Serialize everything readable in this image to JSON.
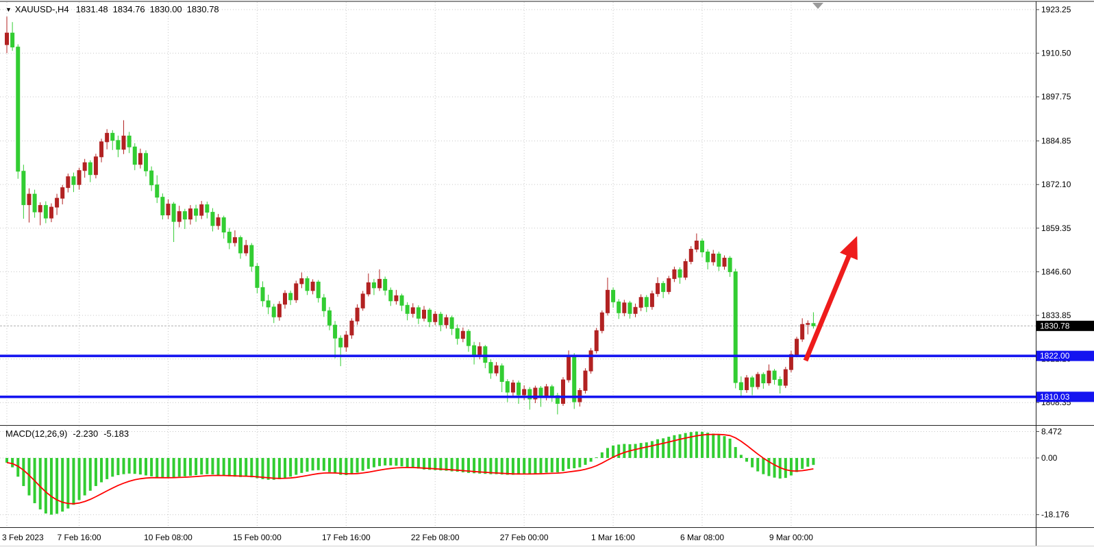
{
  "header": {
    "dropdown_icon": "▼",
    "symbol_period": "XAUUSD-,H4",
    "open": "1831.48",
    "high": "1834.76",
    "low": "1830.00",
    "close": "1830.78"
  },
  "chart_data": {
    "type": "candlestick",
    "symbol": "XAUUSD-",
    "timeframe": "H4",
    "title": "XAUUSD-,H4  1831.48 1834.76 1830.00 1830.78",
    "up_color": "#b22222",
    "down_color": "#32cd32",
    "current_price": 1830.78,
    "current_ohlc": {
      "open": 1831.48,
      "high": 1834.76,
      "low": 1830.0,
      "close": 1830.78
    },
    "y_axis": {
      "labels": [
        "1923.25",
        "1910.50",
        "1897.75",
        "1884.85",
        "1872.10",
        "1859.35",
        "1846.60",
        "1833.85",
        "1821.10",
        "1808.35"
      ],
      "step": 12.75
    },
    "x_axis": {
      "labels": [
        {
          "i": 0,
          "text": "3 Feb 2023"
        },
        {
          "i": 13,
          "text": "7 Feb 16:00"
        },
        {
          "i": 29,
          "text": "10 Feb 08:00"
        },
        {
          "i": 45,
          "text": "15 Feb 00:00"
        },
        {
          "i": 61,
          "text": "17 Feb 16:00"
        },
        {
          "i": 77,
          "text": "22 Feb 08:00"
        },
        {
          "i": 93,
          "text": "27 Feb 00:00"
        },
        {
          "i": 109,
          "text": "1 Mar 16:00"
        },
        {
          "i": 125,
          "text": "6 Mar 08:00"
        },
        {
          "i": 141,
          "text": "9 Mar 00:00"
        }
      ]
    },
    "price_badges": [
      {
        "text": "1830.78",
        "price": 1830.78,
        "bg": "#000000",
        "fg": "#ffffff"
      },
      {
        "text": "1822.00",
        "price": 1822.0,
        "bg": "#1414f0",
        "fg": "#ffffff"
      },
      {
        "text": "1810.03",
        "price": 1810.03,
        "bg": "#1414f0",
        "fg": "#ffffff"
      }
    ],
    "horizontal_lines": [
      {
        "price": 1822.0,
        "color": "#1414f0"
      },
      {
        "price": 1810.03,
        "color": "#1414f0"
      }
    ],
    "arrow": {
      "color": "#ee1c1c",
      "meaning": "bullish-projection"
    },
    "candles": [
      [
        1913.0,
        1921.2,
        1910.5,
        1916.4
      ],
      [
        1916.4,
        1919.6,
        1911.2,
        1912.3
      ],
      [
        1912.3,
        1913.1,
        1873.8,
        1876.0
      ],
      [
        1876.0,
        1877.9,
        1862.1,
        1866.2
      ],
      [
        1866.2,
        1871.0,
        1861.0,
        1869.3
      ],
      [
        1869.3,
        1870.6,
        1862.4,
        1864.1
      ],
      [
        1864.1,
        1866.9,
        1860.2,
        1866.0
      ],
      [
        1866.0,
        1867.2,
        1860.8,
        1862.3
      ],
      [
        1862.3,
        1866.6,
        1861.1,
        1865.5
      ],
      [
        1865.5,
        1869.4,
        1863.2,
        1868.1
      ],
      [
        1868.1,
        1872.0,
        1866.3,
        1871.2
      ],
      [
        1871.2,
        1875.3,
        1869.8,
        1874.4
      ],
      [
        1874.4,
        1875.6,
        1869.9,
        1872.1
      ],
      [
        1872.1,
        1877.0,
        1870.6,
        1876.2
      ],
      [
        1876.2,
        1879.6,
        1874.1,
        1878.5
      ],
      [
        1878.5,
        1879.2,
        1872.8,
        1875.0
      ],
      [
        1875.0,
        1881.1,
        1873.9,
        1880.2
      ],
      [
        1880.2,
        1885.5,
        1878.6,
        1884.6
      ],
      [
        1884.6,
        1888.3,
        1882.4,
        1887.1
      ],
      [
        1887.1,
        1888.0,
        1882.2,
        1885.0
      ],
      [
        1885.0,
        1886.4,
        1880.1,
        1882.4
      ],
      [
        1882.4,
        1890.9,
        1881.0,
        1886.3
      ],
      [
        1886.3,
        1887.5,
        1881.3,
        1883.1
      ],
      [
        1883.1,
        1884.2,
        1876.3,
        1878.0
      ],
      [
        1878.0,
        1882.6,
        1876.8,
        1881.2
      ],
      [
        1881.2,
        1882.1,
        1874.5,
        1876.1
      ],
      [
        1876.1,
        1877.4,
        1870.2,
        1872.0
      ],
      [
        1872.0,
        1874.8,
        1866.7,
        1868.4
      ],
      [
        1868.4,
        1869.5,
        1861.9,
        1863.2
      ],
      [
        1863.2,
        1867.8,
        1862.0,
        1866.4
      ],
      [
        1866.4,
        1867.0,
        1855.3,
        1861.3
      ],
      [
        1861.3,
        1865.9,
        1859.6,
        1864.2
      ],
      [
        1864.2,
        1865.0,
        1859.1,
        1862.0
      ],
      [
        1862.0,
        1866.1,
        1860.4,
        1865.0
      ],
      [
        1865.0,
        1866.2,
        1861.2,
        1863.1
      ],
      [
        1863.1,
        1867.3,
        1862.0,
        1866.2
      ],
      [
        1866.2,
        1867.1,
        1862.2,
        1864.0
      ],
      [
        1864.0,
        1865.2,
        1858.4,
        1860.1
      ],
      [
        1860.1,
        1863.5,
        1858.9,
        1862.4
      ],
      [
        1862.4,
        1863.0,
        1856.3,
        1858.2
      ],
      [
        1858.2,
        1859.4,
        1853.2,
        1855.1
      ],
      [
        1855.1,
        1858.7,
        1854.0,
        1856.6
      ],
      [
        1856.6,
        1857.2,
        1850.4,
        1852.1
      ],
      [
        1852.1,
        1855.9,
        1851.2,
        1854.3
      ],
      [
        1854.3,
        1855.0,
        1846.6,
        1848.2
      ],
      [
        1848.2,
        1849.1,
        1840.3,
        1842.0
      ],
      [
        1842.0,
        1843.8,
        1836.4,
        1838.1
      ],
      [
        1838.1,
        1839.9,
        1834.2,
        1836.3
      ],
      [
        1836.3,
        1837.2,
        1831.6,
        1833.4
      ],
      [
        1833.4,
        1838.0,
        1832.3,
        1837.1
      ],
      [
        1837.1,
        1841.2,
        1835.8,
        1840.3
      ],
      [
        1840.3,
        1841.1,
        1836.9,
        1838.4
      ],
      [
        1838.4,
        1844.0,
        1837.5,
        1843.1
      ],
      [
        1843.1,
        1846.4,
        1841.8,
        1844.6
      ],
      [
        1844.6,
        1845.3,
        1839.8,
        1841.1
      ],
      [
        1841.1,
        1844.4,
        1840.0,
        1843.6
      ],
      [
        1843.6,
        1844.2,
        1837.6,
        1839.0
      ],
      [
        1839.0,
        1840.1,
        1833.4,
        1835.2
      ],
      [
        1835.2,
        1836.3,
        1829.5,
        1831.0
      ],
      [
        1831.0,
        1832.2,
        1821.3,
        1827.2
      ],
      [
        1827.2,
        1828.0,
        1819.0,
        1824.6
      ],
      [
        1824.6,
        1829.3,
        1823.2,
        1828.1
      ],
      [
        1828.1,
        1833.0,
        1827.0,
        1832.2
      ],
      [
        1832.2,
        1837.1,
        1831.1,
        1836.0
      ],
      [
        1836.0,
        1841.0,
        1835.2,
        1840.1
      ],
      [
        1840.1,
        1846.1,
        1839.4,
        1843.4
      ],
      [
        1843.4,
        1844.5,
        1839.8,
        1841.9
      ],
      [
        1841.9,
        1847.3,
        1841.0,
        1844.4
      ],
      [
        1844.4,
        1845.2,
        1839.7,
        1841.2
      ],
      [
        1841.2,
        1842.0,
        1836.6,
        1838.1
      ],
      [
        1838.1,
        1841.3,
        1837.0,
        1839.6
      ],
      [
        1839.6,
        1840.2,
        1835.1,
        1836.8
      ],
      [
        1836.8,
        1837.7,
        1832.4,
        1834.4
      ],
      [
        1834.4,
        1837.4,
        1833.2,
        1836.1
      ],
      [
        1836.1,
        1836.8,
        1831.3,
        1833.0
      ],
      [
        1833.0,
        1836.6,
        1832.1,
        1835.4
      ],
      [
        1835.4,
        1836.0,
        1830.4,
        1832.0
      ],
      [
        1832.0,
        1835.1,
        1831.0,
        1834.2
      ],
      [
        1834.2,
        1834.9,
        1829.2,
        1831.1
      ],
      [
        1831.1,
        1834.1,
        1830.0,
        1833.2
      ],
      [
        1833.2,
        1833.8,
        1828.1,
        1830.0
      ],
      [
        1830.0,
        1831.2,
        1825.3,
        1827.1
      ],
      [
        1827.1,
        1830.3,
        1826.0,
        1829.2
      ],
      [
        1829.2,
        1829.8,
        1823.2,
        1825.0
      ],
      [
        1825.0,
        1826.1,
        1819.5,
        1822.1
      ],
      [
        1822.1,
        1826.0,
        1821.0,
        1824.7
      ],
      [
        1824.7,
        1825.2,
        1818.4,
        1820.1
      ],
      [
        1820.1,
        1821.0,
        1815.3,
        1817.0
      ],
      [
        1817.0,
        1820.2,
        1816.1,
        1819.1
      ],
      [
        1819.1,
        1819.8,
        1811.4,
        1814.5
      ],
      [
        1814.5,
        1815.2,
        1808.5,
        1811.4
      ],
      [
        1811.4,
        1815.0,
        1810.3,
        1814.1
      ],
      [
        1814.1,
        1814.8,
        1808.0,
        1810.6
      ],
      [
        1810.6,
        1813.4,
        1809.1,
        1812.2
      ],
      [
        1812.2,
        1812.9,
        1806.3,
        1809.4
      ],
      [
        1809.4,
        1813.3,
        1808.2,
        1812.6
      ],
      [
        1812.6,
        1813.2,
        1807.1,
        1810.0
      ],
      [
        1810.0,
        1813.8,
        1809.0,
        1813.0
      ],
      [
        1813.0,
        1813.6,
        1808.6,
        1810.4
      ],
      [
        1810.4,
        1811.2,
        1804.9,
        1808.1
      ],
      [
        1808.1,
        1815.8,
        1807.4,
        1815.0
      ],
      [
        1815.0,
        1823.6,
        1814.2,
        1822.0
      ],
      [
        1822.0,
        1822.8,
        1806.5,
        1808.6
      ],
      [
        1808.6,
        1812.6,
        1807.2,
        1811.9
      ],
      [
        1811.9,
        1818.4,
        1811.0,
        1817.6
      ],
      [
        1817.6,
        1824.3,
        1816.8,
        1823.5
      ],
      [
        1823.5,
        1830.2,
        1822.7,
        1829.4
      ],
      [
        1829.4,
        1835.3,
        1828.6,
        1834.6
      ],
      [
        1834.6,
        1844.9,
        1833.8,
        1841.2
      ],
      [
        1841.2,
        1842.0,
        1836.1,
        1837.8
      ],
      [
        1837.8,
        1838.6,
        1832.8,
        1834.6
      ],
      [
        1834.6,
        1838.4,
        1833.6,
        1837.5
      ],
      [
        1837.5,
        1838.1,
        1832.9,
        1834.4
      ],
      [
        1834.4,
        1837.3,
        1833.3,
        1836.2
      ],
      [
        1836.2,
        1840.0,
        1835.1,
        1839.1
      ],
      [
        1839.1,
        1839.8,
        1834.8,
        1836.4
      ],
      [
        1836.4,
        1841.1,
        1835.5,
        1840.2
      ],
      [
        1840.2,
        1845.0,
        1839.3,
        1843.2
      ],
      [
        1843.2,
        1843.9,
        1838.9,
        1840.8
      ],
      [
        1840.8,
        1845.4,
        1840.0,
        1844.6
      ],
      [
        1844.6,
        1848.1,
        1843.6,
        1847.2
      ],
      [
        1847.2,
        1847.9,
        1843.1,
        1845.0
      ],
      [
        1845.0,
        1850.4,
        1844.2,
        1849.6
      ],
      [
        1849.6,
        1854.1,
        1848.8,
        1853.2
      ],
      [
        1853.2,
        1857.8,
        1852.3,
        1855.6
      ],
      [
        1855.6,
        1856.3,
        1850.9,
        1852.4
      ],
      [
        1852.4,
        1853.2,
        1847.3,
        1849.5
      ],
      [
        1849.5,
        1853.0,
        1848.4,
        1851.8
      ],
      [
        1851.8,
        1852.5,
        1846.8,
        1848.2
      ],
      [
        1848.2,
        1851.4,
        1847.2,
        1850.6
      ],
      [
        1850.6,
        1851.2,
        1845.1,
        1846.6
      ],
      [
        1846.6,
        1847.5,
        1812.5,
        1814.2
      ],
      [
        1814.2,
        1816.0,
        1809.8,
        1812.1
      ],
      [
        1812.1,
        1816.4,
        1811.2,
        1815.6
      ],
      [
        1815.6,
        1816.2,
        1810.5,
        1813.0
      ],
      [
        1813.0,
        1817.3,
        1812.2,
        1816.6
      ],
      [
        1816.6,
        1817.2,
        1812.4,
        1814.1
      ],
      [
        1814.1,
        1819.5,
        1813.3,
        1817.6
      ],
      [
        1817.6,
        1818.2,
        1813.6,
        1815.1
      ],
      [
        1815.1,
        1816.0,
        1811.0,
        1813.4
      ],
      [
        1813.4,
        1818.8,
        1812.6,
        1818.0
      ],
      [
        1818.0,
        1823.5,
        1817.2,
        1822.4
      ],
      [
        1822.4,
        1827.6,
        1821.6,
        1826.9
      ],
      [
        1826.9,
        1833.0,
        1826.1,
        1831.2
      ],
      [
        1831.2,
        1832.4,
        1828.3,
        1831.5
      ],
      [
        1831.48,
        1834.76,
        1830.0,
        1830.78
      ]
    ],
    "macd": {
      "label": "MACD(12,26,9)",
      "main_value": "-2.230",
      "signal_value": "-5.183",
      "axis_labels": [
        "8.472",
        "0.00",
        "-18.176"
      ],
      "histogram_color": "#32cd32",
      "signal_color": "#ff0000",
      "histogram": [
        -1.5,
        -3,
        -6,
        -9,
        -12,
        -14.5,
        -16.5,
        -17.8,
        -18.18,
        -17.9,
        -17.2,
        -16.2,
        -15,
        -13.5,
        -12,
        -10.5,
        -9,
        -7.8,
        -6.8,
        -6,
        -5.5,
        -5.2,
        -5.0,
        -5.1,
        -5.3,
        -5.6,
        -5.9,
        -6.2,
        -6.4,
        -6.3,
        -6.2,
        -6.0,
        -5.9,
        -5.7,
        -5.5,
        -5.3,
        -5.2,
        -5.3,
        -5.5,
        -5.7,
        -5.9,
        -6.0,
        -6.1,
        -6.0,
        -6.2,
        -6.5,
        -6.8,
        -7.0,
        -7.0,
        -6.8,
        -6.4,
        -6.0,
        -5.4,
        -4.8,
        -4.4,
        -4.0,
        -3.9,
        -4.1,
        -4.5,
        -5.0,
        -5.4,
        -5.5,
        -5.2,
        -4.7,
        -4.1,
        -3.5,
        -3.0,
        -2.6,
        -2.4,
        -2.4,
        -2.5,
        -2.7,
        -2.9,
        -3.1,
        -3.4,
        -3.7,
        -3.8,
        -3.9,
        -4.0,
        -4.1,
        -4.3,
        -4.4,
        -4.6,
        -4.8,
        -4.9,
        -5.0,
        -5.1,
        -5.2,
        -5.2,
        -5.3,
        -5.4,
        -5.4,
        -5.3,
        -5.2,
        -5.1,
        -5.0,
        -4.9,
        -4.7,
        -4.6,
        -4.6,
        -4.2,
        -3.5,
        -3.3,
        -3.0,
        -2.2,
        -1.2,
        0.2,
        1.8,
        3.2,
        4.0,
        4.3,
        4.5,
        4.4,
        4.5,
        4.8,
        5.0,
        5.4,
        6.0,
        6.3,
        6.8,
        7.3,
        7.6,
        8.0,
        8.3,
        8.472,
        8.4,
        8.1,
        7.8,
        7.4,
        7.0,
        6.2,
        3.5,
        1.0,
        -1.2,
        -3.0,
        -4.3,
        -5.2,
        -5.8,
        -6.3,
        -6.6,
        -6.4,
        -5.6,
        -4.5,
        -3.5,
        -2.8,
        -2.23
      ]
    }
  }
}
